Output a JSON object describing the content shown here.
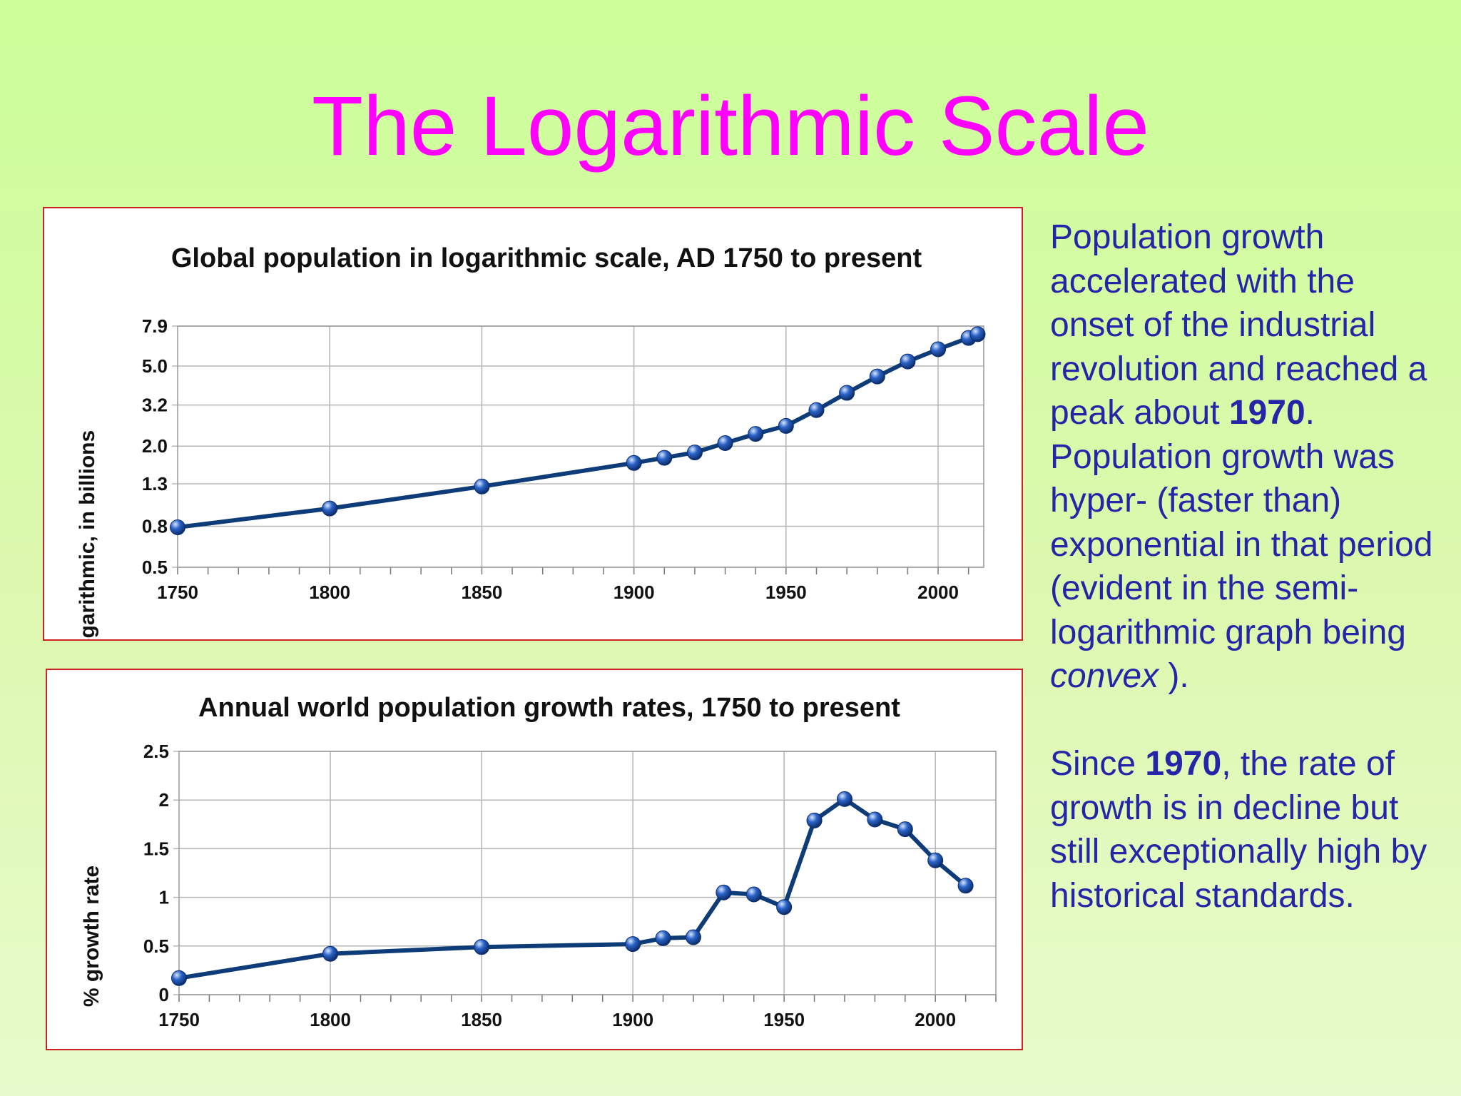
{
  "slide": {
    "title": "The Logarithmic Scale",
    "title_color": "#ff00ff",
    "text_color": "#2525a8",
    "background": [
      "#ccff99",
      "#e8fbcc"
    ]
  },
  "side_text": {
    "p1": [
      "Population growth accelerated with the onset of the industrial revolution and reached a peak about ",
      "1970",
      ". Population growth was hyper- (faster than) exponential in that period (evident in the semi-logarithmic graph being ",
      "convex",
      " )."
    ],
    "p2": [
      "Since ",
      "1970",
      ", the rate of growth is in decline but still exceptionally high by historical standards."
    ]
  },
  "chart_data": [
    {
      "type": "line",
      "title": "Global population in logarithmic scale, AD 1750 to present",
      "xlabel": "",
      "ylabel": "logarithmic, in billions",
      "y_scale": "log",
      "ylim": [
        0.5,
        7.9
      ],
      "xlim": [
        1750,
        2015
      ],
      "y_ticks": [
        "0.5",
        "0.8",
        "1.3",
        "2.0",
        "3.2",
        "5.0",
        "7.9"
      ],
      "x_ticks": [
        "1750",
        "1800",
        "1850",
        "1900",
        "1950",
        "2000"
      ],
      "grid": true,
      "line_color": "#0d3c78",
      "marker_color": "#2b63c8",
      "series": [
        {
          "x": [
            1750,
            1800,
            1850,
            1900,
            1910,
            1920,
            1930,
            1940,
            1950,
            1960,
            1970,
            1980,
            1990,
            2000,
            2010,
            2013
          ],
          "y": [
            0.79,
            0.98,
            1.26,
            1.65,
            1.75,
            1.86,
            2.07,
            2.3,
            2.52,
            3.02,
            3.68,
            4.44,
            5.27,
            6.06,
            6.9,
            7.2
          ]
        }
      ]
    },
    {
      "type": "line",
      "title": "Annual world population growth rates, 1750 to present",
      "xlabel": "",
      "ylabel": "% growth rate",
      "ylim": [
        0,
        2.5
      ],
      "xlim": [
        1750,
        2020
      ],
      "y_ticks": [
        "0",
        "0.5",
        "1",
        "1.5",
        "2",
        "2.5"
      ],
      "x_ticks": [
        "1750",
        "1800",
        "1850",
        "1900",
        "1950",
        "2000"
      ],
      "grid": true,
      "line_color": "#0d3c78",
      "marker_color": "#2b63c8",
      "series": [
        {
          "x": [
            1750,
            1800,
            1850,
            1900,
            1910,
            1920,
            1930,
            1940,
            1950,
            1960,
            1970,
            1980,
            1990,
            2000,
            2010
          ],
          "y": [
            0.17,
            0.42,
            0.49,
            0.52,
            0.58,
            0.59,
            1.05,
            1.03,
            0.9,
            1.79,
            2.01,
            1.8,
            1.7,
            1.38,
            1.12
          ]
        }
      ]
    }
  ]
}
